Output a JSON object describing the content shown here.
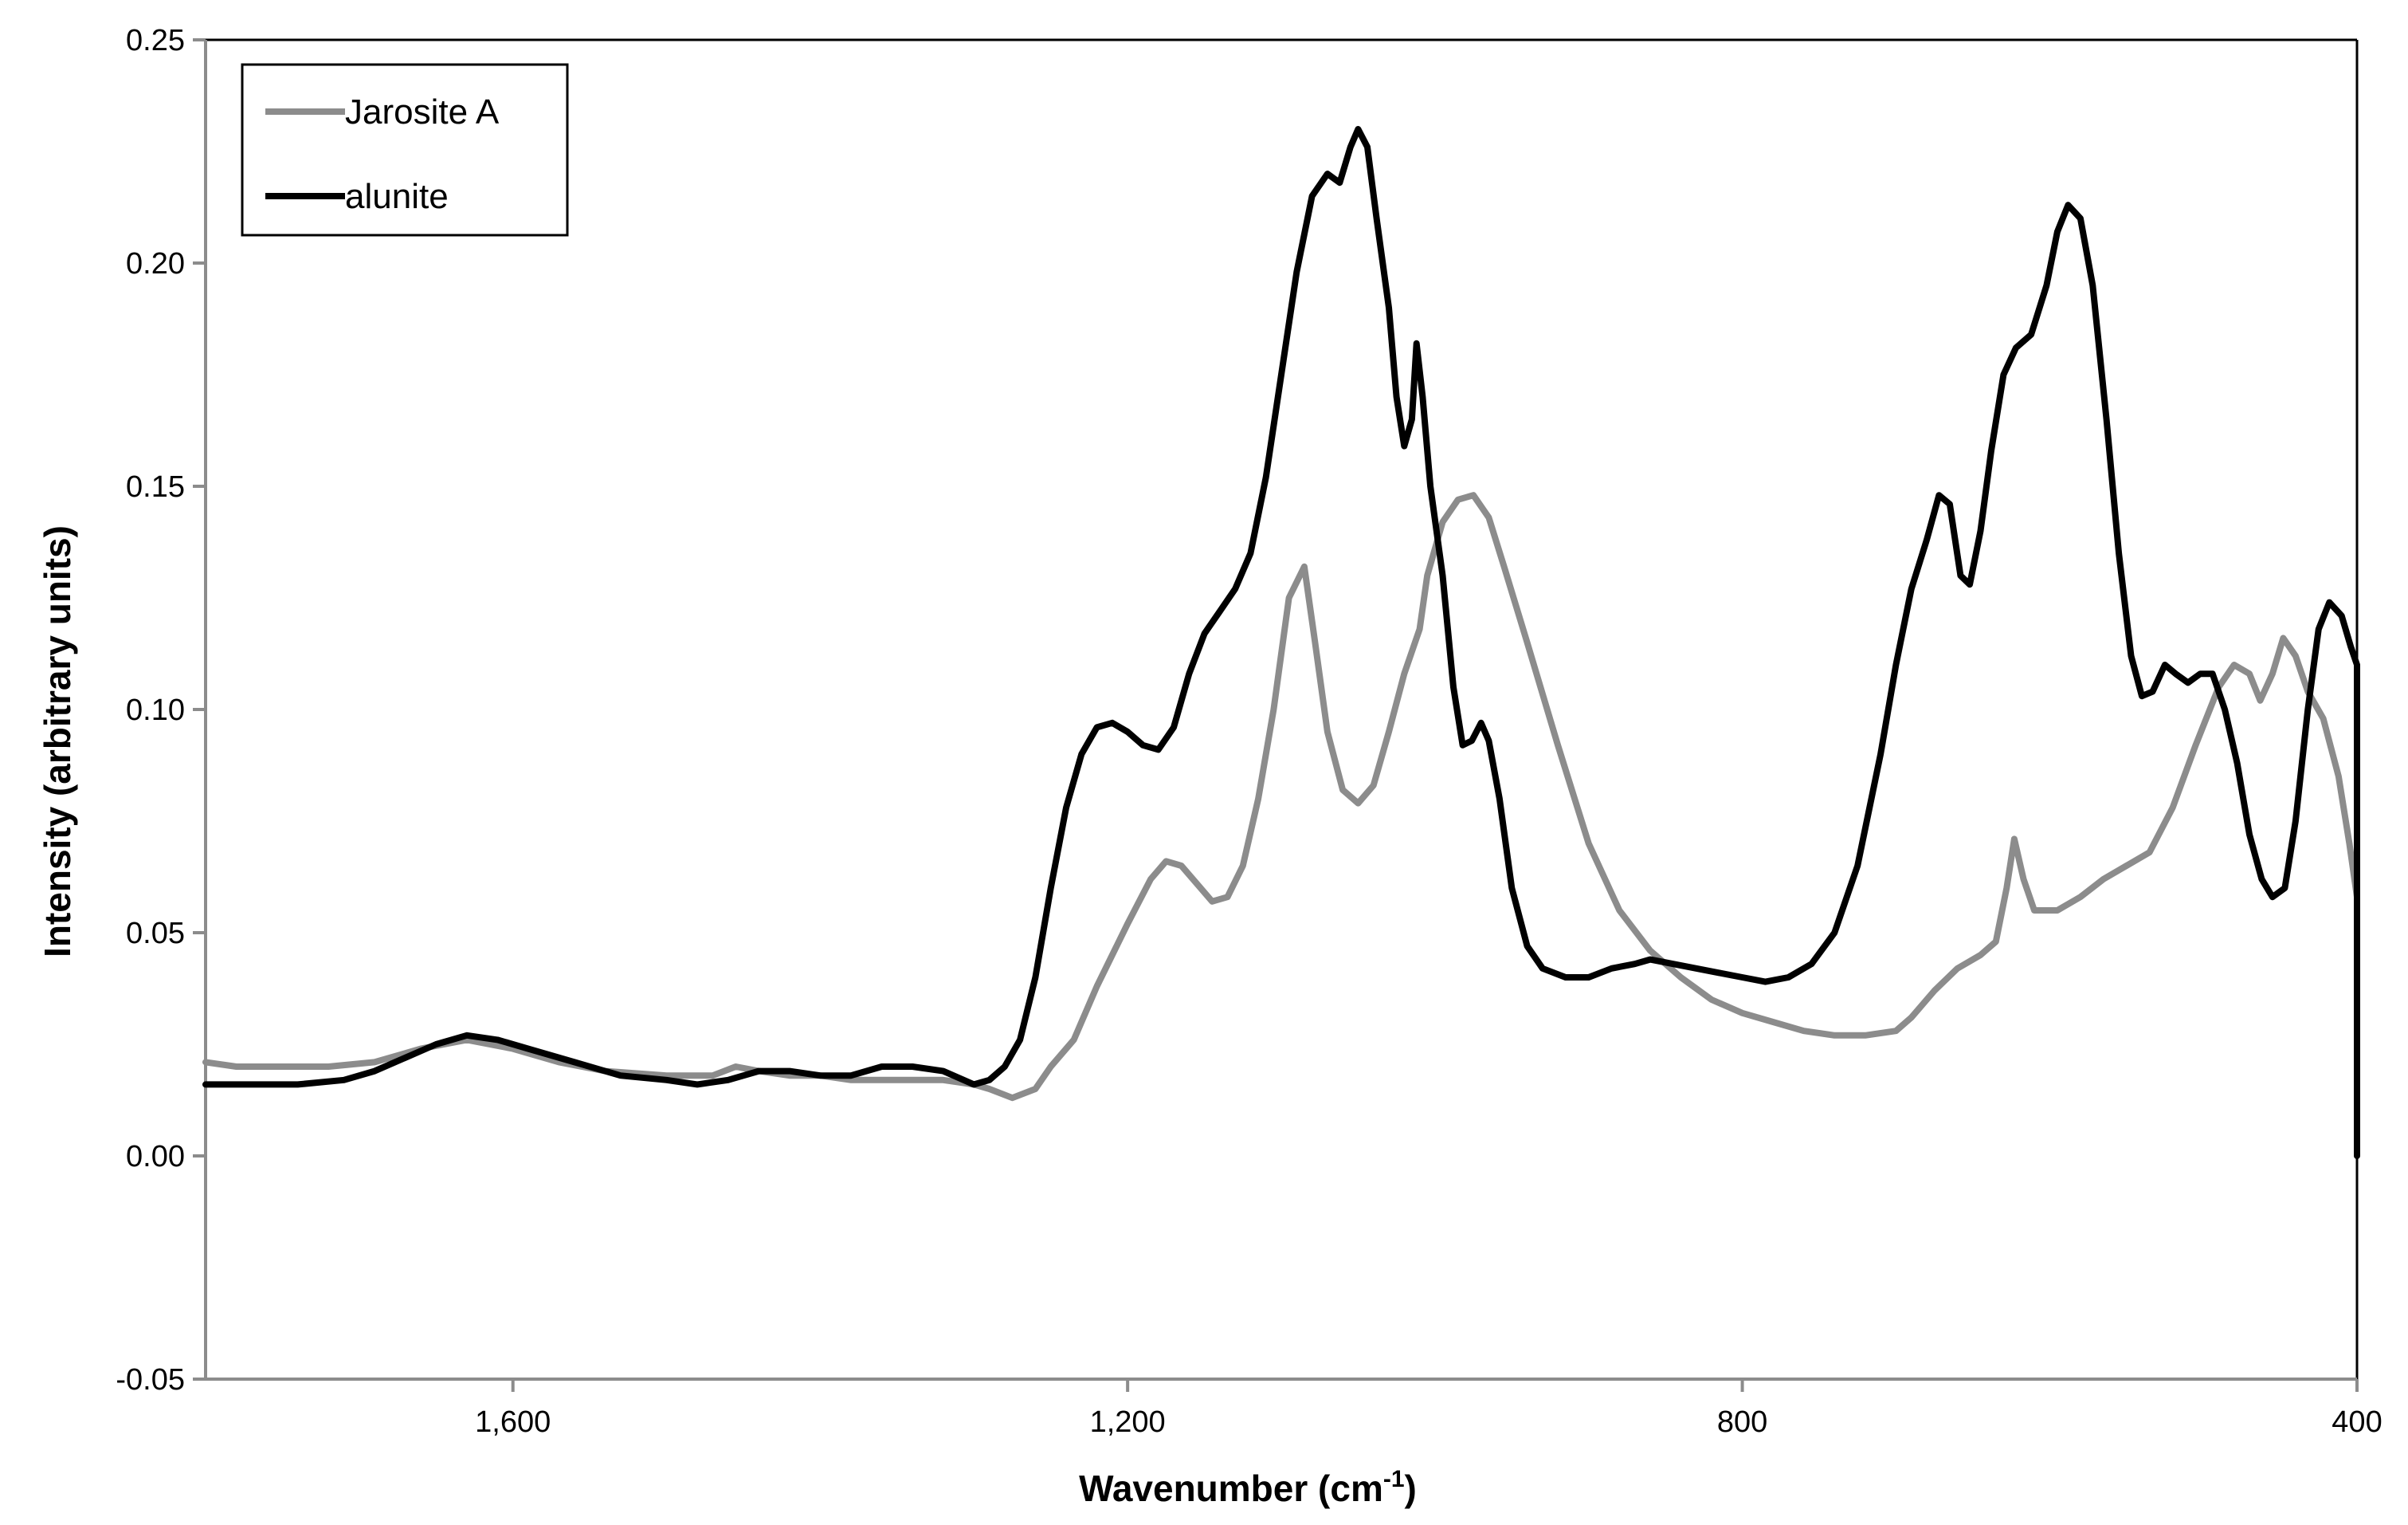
{
  "chart_data": {
    "type": "line",
    "title": "",
    "xlabel": "Wavenumber (cm",
    "xlabel_sup": "-1",
    "xlabel_tail": ")",
    "ylabel": "Intensity (arbitrary units)",
    "xlim": [
      1800,
      400
    ],
    "x_reversed": true,
    "ylim": [
      -0.05,
      0.25
    ],
    "x_ticks": [
      1600,
      1200,
      800,
      400
    ],
    "x_tick_labels": [
      "1,600",
      "1,200",
      "800",
      "400"
    ],
    "y_ticks": [
      -0.05,
      0.0,
      0.05,
      0.1,
      0.15,
      0.2,
      0.25
    ],
    "y_tick_labels": [
      "-0.05",
      "0.00",
      "0.05",
      "0.10",
      "0.15",
      "0.20",
      "0.25"
    ],
    "grid": false,
    "legend_position": "top-left",
    "series": [
      {
        "name": "Jarosite A",
        "color": "#8c8c8c",
        "points": [
          [
            1800,
            0.021
          ],
          [
            1780,
            0.02
          ],
          [
            1750,
            0.02
          ],
          [
            1720,
            0.02
          ],
          [
            1690,
            0.021
          ],
          [
            1660,
            0.024
          ],
          [
            1630,
            0.026
          ],
          [
            1600,
            0.024
          ],
          [
            1570,
            0.021
          ],
          [
            1540,
            0.019
          ],
          [
            1500,
            0.018
          ],
          [
            1470,
            0.018
          ],
          [
            1455,
            0.02
          ],
          [
            1440,
            0.019
          ],
          [
            1420,
            0.018
          ],
          [
            1400,
            0.018
          ],
          [
            1380,
            0.017
          ],
          [
            1350,
            0.017
          ],
          [
            1320,
            0.017
          ],
          [
            1300,
            0.016
          ],
          [
            1290,
            0.015
          ],
          [
            1275,
            0.013
          ],
          [
            1260,
            0.015
          ],
          [
            1250,
            0.02
          ],
          [
            1235,
            0.026
          ],
          [
            1220,
            0.038
          ],
          [
            1200,
            0.052
          ],
          [
            1185,
            0.062
          ],
          [
            1175,
            0.066
          ],
          [
            1165,
            0.065
          ],
          [
            1155,
            0.061
          ],
          [
            1145,
            0.057
          ],
          [
            1135,
            0.058
          ],
          [
            1125,
            0.065
          ],
          [
            1115,
            0.08
          ],
          [
            1105,
            0.1
          ],
          [
            1095,
            0.125
          ],
          [
            1085,
            0.132
          ],
          [
            1078,
            0.115
          ],
          [
            1070,
            0.095
          ],
          [
            1060,
            0.082
          ],
          [
            1050,
            0.079
          ],
          [
            1040,
            0.083
          ],
          [
            1030,
            0.095
          ],
          [
            1020,
            0.108
          ],
          [
            1010,
            0.118
          ],
          [
            1005,
            0.13
          ],
          [
            995,
            0.142
          ],
          [
            985,
            0.147
          ],
          [
            975,
            0.148
          ],
          [
            965,
            0.143
          ],
          [
            955,
            0.132
          ],
          [
            940,
            0.115
          ],
          [
            920,
            0.092
          ],
          [
            900,
            0.07
          ],
          [
            880,
            0.055
          ],
          [
            860,
            0.046
          ],
          [
            840,
            0.04
          ],
          [
            820,
            0.035
          ],
          [
            800,
            0.032
          ],
          [
            780,
            0.03
          ],
          [
            760,
            0.028
          ],
          [
            740,
            0.027
          ],
          [
            720,
            0.027
          ],
          [
            700,
            0.028
          ],
          [
            690,
            0.031
          ],
          [
            675,
            0.037
          ],
          [
            660,
            0.042
          ],
          [
            645,
            0.045
          ],
          [
            635,
            0.048
          ],
          [
            628,
            0.06
          ],
          [
            623,
            0.071
          ],
          [
            617,
            0.062
          ],
          [
            610,
            0.055
          ],
          [
            595,
            0.055
          ],
          [
            580,
            0.058
          ],
          [
            565,
            0.062
          ],
          [
            550,
            0.065
          ],
          [
            535,
            0.068
          ],
          [
            520,
            0.078
          ],
          [
            505,
            0.092
          ],
          [
            490,
            0.105
          ],
          [
            480,
            0.11
          ],
          [
            470,
            0.108
          ],
          [
            463,
            0.102
          ],
          [
            455,
            0.108
          ],
          [
            448,
            0.116
          ],
          [
            440,
            0.112
          ],
          [
            432,
            0.104
          ],
          [
            422,
            0.098
          ],
          [
            412,
            0.085
          ],
          [
            405,
            0.07
          ],
          [
            400,
            0.058
          ]
        ]
      },
      {
        "name": "alunite",
        "color": "#000000",
        "points": [
          [
            1800,
            0.016
          ],
          [
            1780,
            0.016
          ],
          [
            1740,
            0.016
          ],
          [
            1710,
            0.017
          ],
          [
            1690,
            0.019
          ],
          [
            1670,
            0.022
          ],
          [
            1650,
            0.025
          ],
          [
            1630,
            0.027
          ],
          [
            1610,
            0.026
          ],
          [
            1590,
            0.024
          ],
          [
            1560,
            0.021
          ],
          [
            1530,
            0.018
          ],
          [
            1500,
            0.017
          ],
          [
            1480,
            0.016
          ],
          [
            1460,
            0.017
          ],
          [
            1440,
            0.019
          ],
          [
            1420,
            0.019
          ],
          [
            1400,
            0.018
          ],
          [
            1380,
            0.018
          ],
          [
            1360,
            0.02
          ],
          [
            1340,
            0.02
          ],
          [
            1320,
            0.019
          ],
          [
            1300,
            0.016
          ],
          [
            1290,
            0.017
          ],
          [
            1280,
            0.02
          ],
          [
            1270,
            0.026
          ],
          [
            1260,
            0.04
          ],
          [
            1250,
            0.06
          ],
          [
            1240,
            0.078
          ],
          [
            1230,
            0.09
          ],
          [
            1220,
            0.096
          ],
          [
            1210,
            0.097
          ],
          [
            1200,
            0.095
          ],
          [
            1190,
            0.092
          ],
          [
            1180,
            0.091
          ],
          [
            1170,
            0.096
          ],
          [
            1160,
            0.108
          ],
          [
            1150,
            0.117
          ],
          [
            1140,
            0.122
          ],
          [
            1130,
            0.127
          ],
          [
            1120,
            0.135
          ],
          [
            1110,
            0.152
          ],
          [
            1100,
            0.175
          ],
          [
            1090,
            0.198
          ],
          [
            1080,
            0.215
          ],
          [
            1070,
            0.22
          ],
          [
            1062,
            0.218
          ],
          [
            1055,
            0.226
          ],
          [
            1050,
            0.23
          ],
          [
            1044,
            0.226
          ],
          [
            1038,
            0.21
          ],
          [
            1030,
            0.19
          ],
          [
            1025,
            0.17
          ],
          [
            1020,
            0.159
          ],
          [
            1015,
            0.165
          ],
          [
            1012,
            0.182
          ],
          [
            1008,
            0.17
          ],
          [
            1003,
            0.15
          ],
          [
            995,
            0.13
          ],
          [
            988,
            0.105
          ],
          [
            982,
            0.092
          ],
          [
            976,
            0.093
          ],
          [
            970,
            0.097
          ],
          [
            965,
            0.093
          ],
          [
            958,
            0.08
          ],
          [
            950,
            0.06
          ],
          [
            940,
            0.047
          ],
          [
            930,
            0.042
          ],
          [
            915,
            0.04
          ],
          [
            900,
            0.04
          ],
          [
            885,
            0.042
          ],
          [
            870,
            0.043
          ],
          [
            860,
            0.044
          ],
          [
            845,
            0.043
          ],
          [
            830,
            0.042
          ],
          [
            815,
            0.041
          ],
          [
            800,
            0.04
          ],
          [
            785,
            0.039
          ],
          [
            770,
            0.04
          ],
          [
            755,
            0.043
          ],
          [
            740,
            0.05
          ],
          [
            725,
            0.065
          ],
          [
            710,
            0.09
          ],
          [
            700,
            0.11
          ],
          [
            690,
            0.127
          ],
          [
            680,
            0.138
          ],
          [
            672,
            0.148
          ],
          [
            665,
            0.146
          ],
          [
            658,
            0.13
          ],
          [
            652,
            0.128
          ],
          [
            645,
            0.14
          ],
          [
            638,
            0.158
          ],
          [
            630,
            0.175
          ],
          [
            622,
            0.181
          ],
          [
            612,
            0.184
          ],
          [
            602,
            0.195
          ],
          [
            595,
            0.207
          ],
          [
            588,
            0.213
          ],
          [
            580,
            0.21
          ],
          [
            572,
            0.195
          ],
          [
            563,
            0.165
          ],
          [
            555,
            0.135
          ],
          [
            547,
            0.112
          ],
          [
            540,
            0.103
          ],
          [
            533,
            0.104
          ],
          [
            525,
            0.11
          ],
          [
            518,
            0.108
          ],
          [
            510,
            0.106
          ],
          [
            502,
            0.108
          ],
          [
            494,
            0.108
          ],
          [
            486,
            0.1
          ],
          [
            478,
            0.088
          ],
          [
            470,
            0.072
          ],
          [
            462,
            0.062
          ],
          [
            455,
            0.058
          ],
          [
            447,
            0.06
          ],
          [
            440,
            0.075
          ],
          [
            432,
            0.1
          ],
          [
            425,
            0.118
          ],
          [
            418,
            0.124
          ],
          [
            410,
            0.121
          ],
          [
            404,
            0.114
          ],
          [
            400,
            0.11
          ],
          [
            400,
            0.0
          ]
        ]
      }
    ]
  }
}
